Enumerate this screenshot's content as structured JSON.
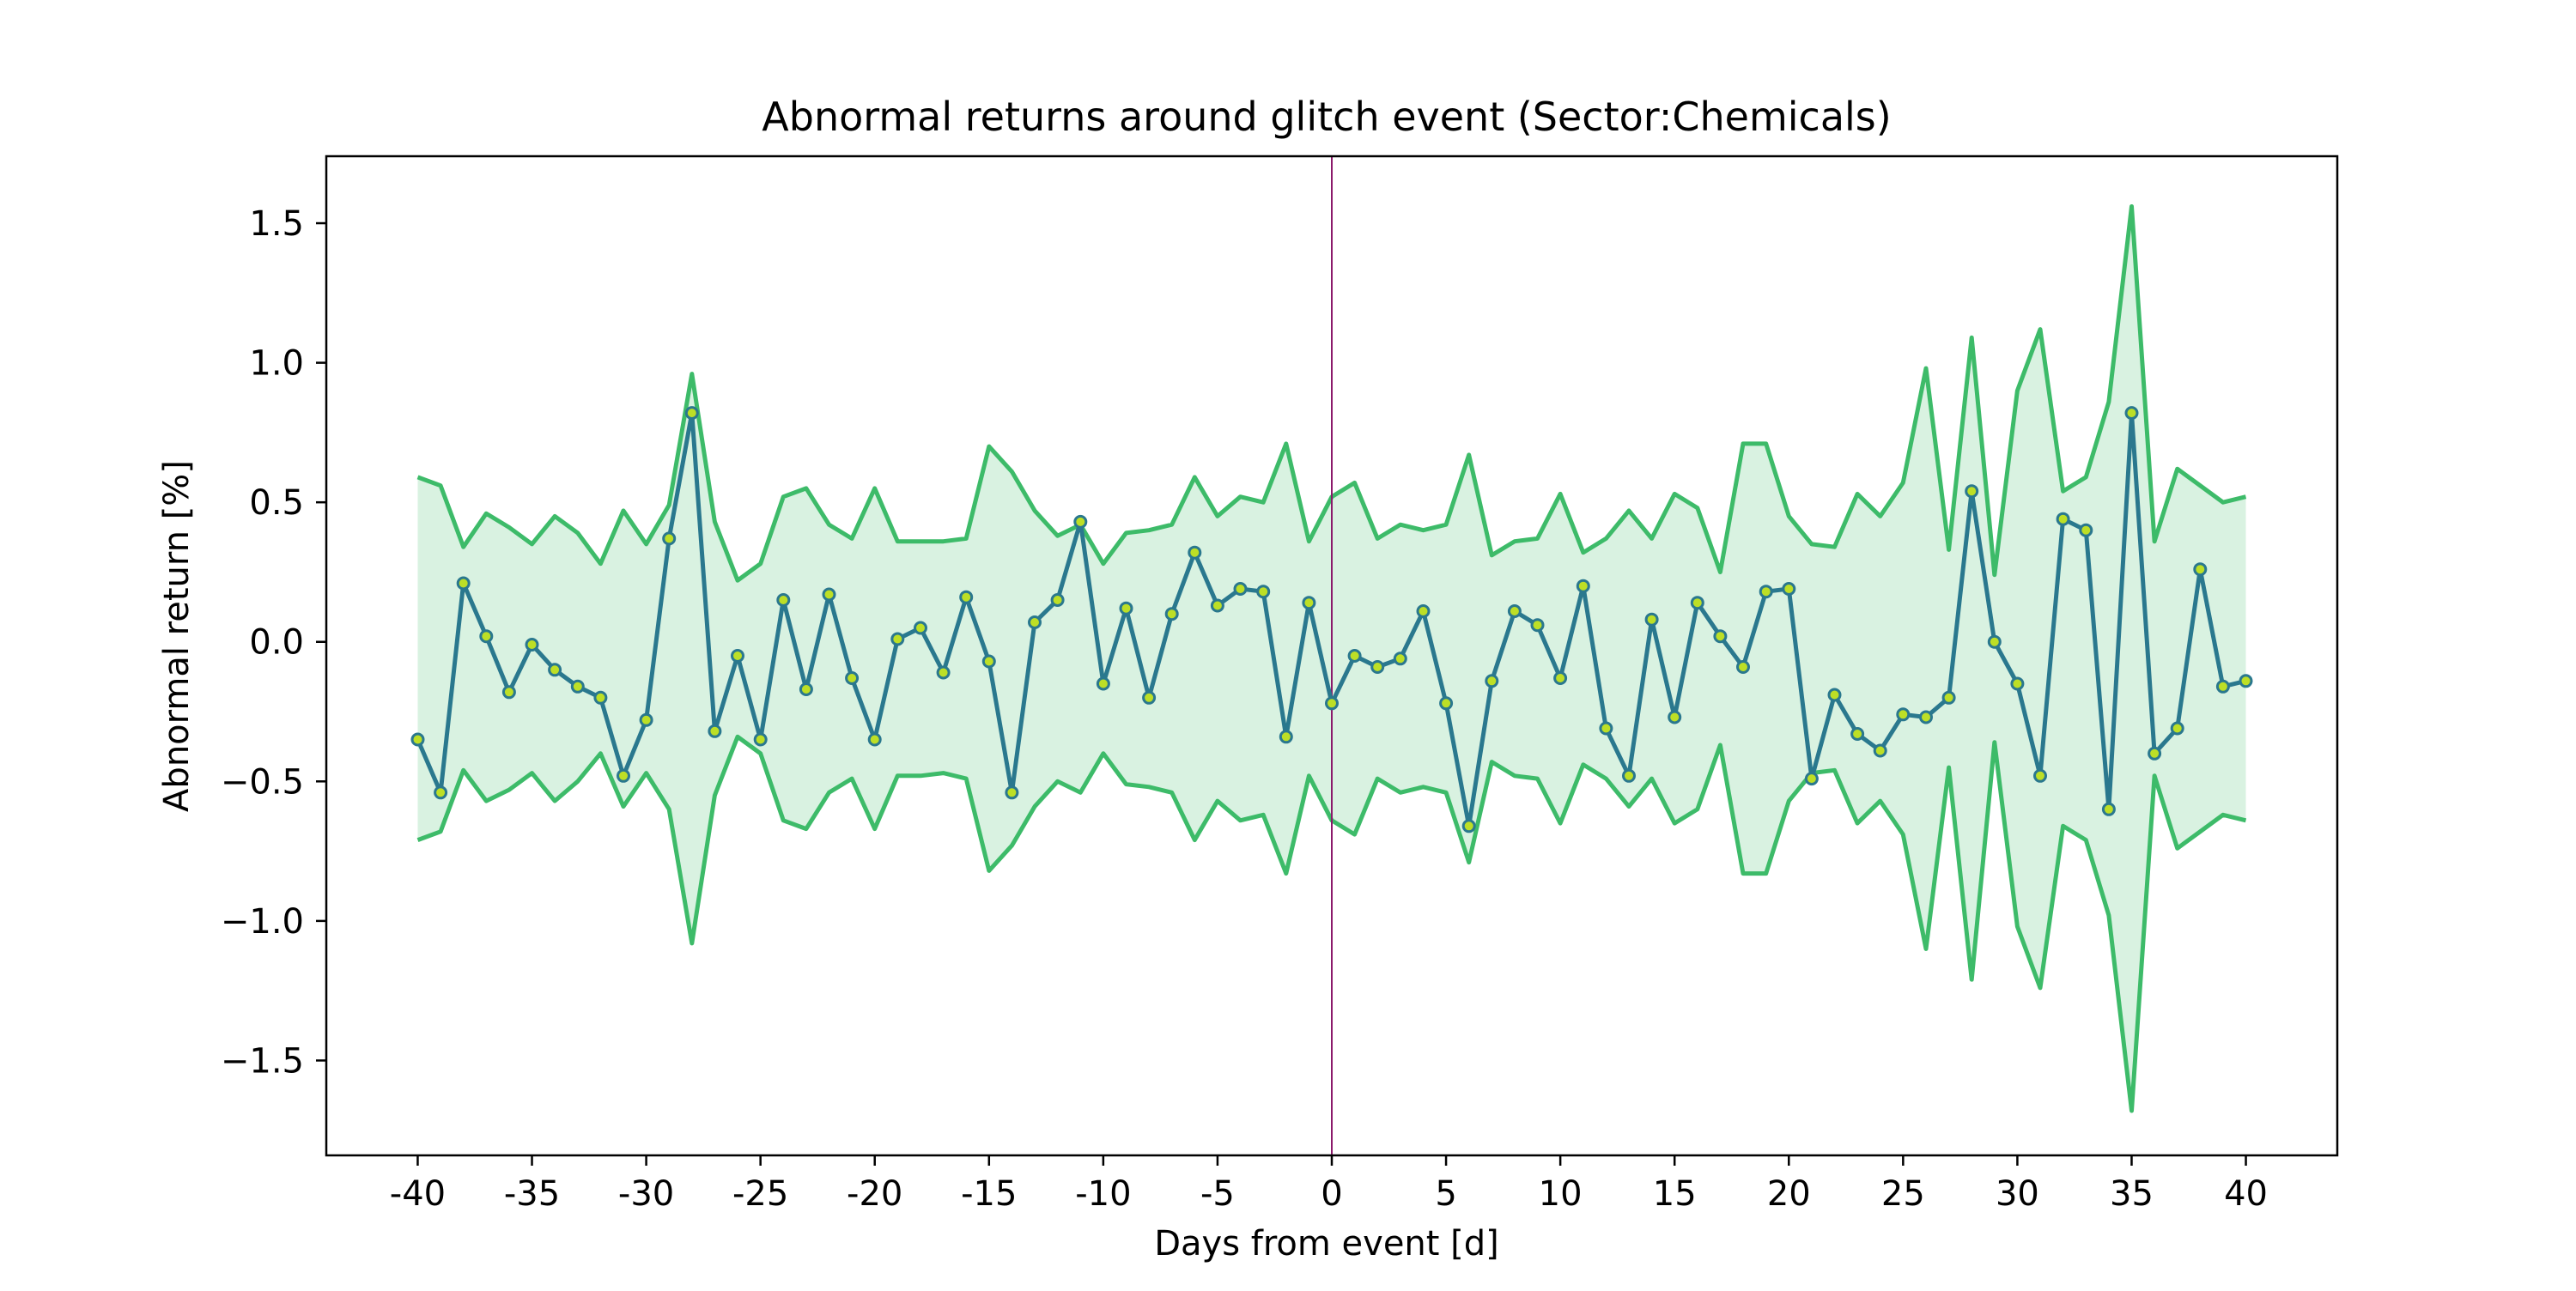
{
  "chart_data": {
    "type": "line",
    "title": "Abnormal returns around glitch event (Sector:Chemicals)",
    "xlabel": "Days from event [d]",
    "ylabel": "Abnormal return [%]",
    "xlim": [
      -44,
      44
    ],
    "ylim": [
      -1.84,
      1.74
    ],
    "xticks": [
      -40,
      -35,
      -30,
      -25,
      -20,
      -15,
      -10,
      -5,
      0,
      5,
      10,
      15,
      20,
      25,
      30,
      35,
      40
    ],
    "xtick_labels": [
      "-40",
      "-35",
      "-30",
      "-25",
      "-20",
      "-15",
      "-10",
      "-5",
      "0",
      "5",
      "10",
      "15",
      "20",
      "25",
      "30",
      "35",
      "40"
    ],
    "yticks": [
      -1.5,
      -1.0,
      -0.5,
      0.0,
      0.5,
      1.0,
      1.5
    ],
    "ytick_labels": [
      "−1.5",
      "−1.0",
      "−0.5",
      "0.0",
      "0.5",
      "1.0",
      "1.5"
    ],
    "event_line_x": 0,
    "grid": false,
    "legend": "none",
    "colors": {
      "mean_line": "#2a788e",
      "marker_fill": "#bddf26",
      "band_line": "#3dbb69",
      "band_fill": "#d9f2e1",
      "event_line": "#8b1a6b"
    },
    "x": [
      -40,
      -39,
      -38,
      -37,
      -36,
      -35,
      -34,
      -33,
      -32,
      -31,
      -30,
      -29,
      -28,
      -27,
      -26,
      -25,
      -24,
      -23,
      -22,
      -21,
      -20,
      -19,
      -18,
      -17,
      -16,
      -15,
      -14,
      -13,
      -12,
      -11,
      -10,
      -9,
      -8,
      -7,
      -6,
      -5,
      -4,
      -3,
      -2,
      -1,
      0,
      1,
      2,
      3,
      4,
      5,
      6,
      7,
      8,
      9,
      10,
      11,
      12,
      13,
      14,
      15,
      16,
      17,
      18,
      19,
      20,
      21,
      22,
      23,
      24,
      25,
      26,
      27,
      28,
      29,
      30,
      31,
      32,
      33,
      34,
      35,
      36,
      37,
      38,
      39,
      40
    ],
    "series": [
      {
        "values": [
          -0.35,
          -0.54,
          0.21,
          0.02,
          -0.18,
          -0.01,
          -0.1,
          -0.16,
          -0.2,
          -0.48,
          -0.28,
          0.37,
          0.82,
          -0.32,
          -0.05,
          -0.35,
          0.15,
          -0.17,
          0.17,
          -0.13,
          -0.35,
          0.01,
          0.05,
          -0.11,
          0.16,
          -0.07,
          -0.54,
          0.07,
          0.15,
          0.43,
          -0.15,
          0.12,
          -0.2,
          0.1,
          0.32,
          0.13,
          0.19,
          0.18,
          -0.34,
          0.14,
          -0.22,
          -0.05,
          -0.09,
          -0.06,
          0.11,
          -0.22,
          -0.66,
          -0.14,
          0.11,
          0.06,
          -0.13,
          0.2,
          -0.31,
          -0.48,
          0.08,
          -0.27,
          0.14,
          0.02,
          -0.09,
          0.18,
          0.19,
          -0.49,
          -0.19,
          -0.33,
          -0.39,
          -0.26,
          -0.27,
          -0.2,
          0.54,
          0.0,
          -0.15,
          -0.48,
          0.44,
          0.4,
          -0.6,
          0.82,
          -0.4,
          -0.31,
          0.26,
          -0.16,
          -0.14
        ]
      }
    ],
    "band_upper": [
      0.59,
      0.56,
      0.34,
      0.46,
      0.41,
      0.35,
      0.45,
      0.39,
      0.28,
      0.47,
      0.35,
      0.49,
      0.96,
      0.43,
      0.22,
      0.28,
      0.52,
      0.55,
      0.42,
      0.37,
      0.55,
      0.36,
      0.36,
      0.36,
      0.37,
      0.7,
      0.61,
      0.47,
      0.38,
      0.42,
      0.28,
      0.39,
      0.4,
      0.42,
      0.59,
      0.45,
      0.52,
      0.5,
      0.71,
      0.36,
      0.52,
      0.57,
      0.37,
      0.42,
      0.4,
      0.42,
      0.67,
      0.31,
      0.36,
      0.37,
      0.53,
      0.32,
      0.37,
      0.47,
      0.37,
      0.53,
      0.48,
      0.25,
      0.71,
      0.71,
      0.45,
      0.35,
      0.34,
      0.53,
      0.45,
      0.57,
      0.98,
      0.33,
      1.09,
      0.24,
      0.9,
      1.12,
      0.54,
      0.59,
      0.86,
      1.56,
      0.36,
      0.62,
      0.56,
      0.5,
      0.52
    ],
    "band_lower": [
      -0.71,
      -0.68,
      -0.46,
      -0.57,
      -0.53,
      -0.47,
      -0.57,
      -0.5,
      -0.4,
      -0.59,
      -0.47,
      -0.6,
      -1.08,
      -0.55,
      -0.34,
      -0.4,
      -0.64,
      -0.67,
      -0.54,
      -0.49,
      -0.67,
      -0.48,
      -0.48,
      -0.47,
      -0.49,
      -0.82,
      -0.73,
      -0.59,
      -0.5,
      -0.54,
      -0.4,
      -0.51,
      -0.52,
      -0.54,
      -0.71,
      -0.57,
      -0.64,
      -0.62,
      -0.83,
      -0.48,
      -0.64,
      -0.69,
      -0.49,
      -0.54,
      -0.52,
      -0.54,
      -0.79,
      -0.43,
      -0.48,
      -0.49,
      -0.65,
      -0.44,
      -0.49,
      -0.59,
      -0.49,
      -0.65,
      -0.6,
      -0.37,
      -0.83,
      -0.83,
      -0.57,
      -0.47,
      -0.46,
      -0.65,
      -0.57,
      -0.69,
      -1.1,
      -0.45,
      -1.21,
      -0.36,
      -1.02,
      -1.24,
      -0.66,
      -0.71,
      -0.98,
      -1.68,
      -0.48,
      -0.74,
      -0.68,
      -0.62,
      -0.64
    ]
  }
}
